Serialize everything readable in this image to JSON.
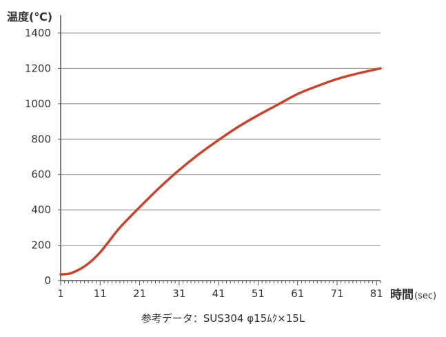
{
  "chart_data": {
    "type": "line",
    "ylabel": "温度(℃)",
    "xlabel_main": "時間",
    "xlabel_unit": "(sec)",
    "xlim": [
      1,
      82
    ],
    "ylim": [
      0,
      1400
    ],
    "x_ticks": [
      1,
      11,
      21,
      31,
      41,
      51,
      61,
      71,
      81
    ],
    "y_ticks": [
      0,
      200,
      400,
      600,
      800,
      1000,
      1200,
      1400
    ],
    "grid": "horizontal",
    "series": [
      {
        "color": "#c9432c",
        "x": [
          1,
          3,
          5,
          7,
          9,
          11,
          13,
          16,
          21,
          26,
          31,
          36,
          41,
          46,
          51,
          56,
          61,
          66,
          71,
          76,
          82
        ],
        "y": [
          35,
          38,
          55,
          80,
          115,
          160,
          215,
          300,
          415,
          525,
          625,
          715,
          795,
          870,
          935,
          995,
          1055,
          1100,
          1140,
          1170,
          1200
        ]
      }
    ]
  },
  "caption": "参考データ：SUS304 φ15ﾑｸ×15L",
  "colors": {
    "axis": "#555555",
    "grid": "#888888",
    "line": "#c9432c",
    "text": "#333333"
  }
}
